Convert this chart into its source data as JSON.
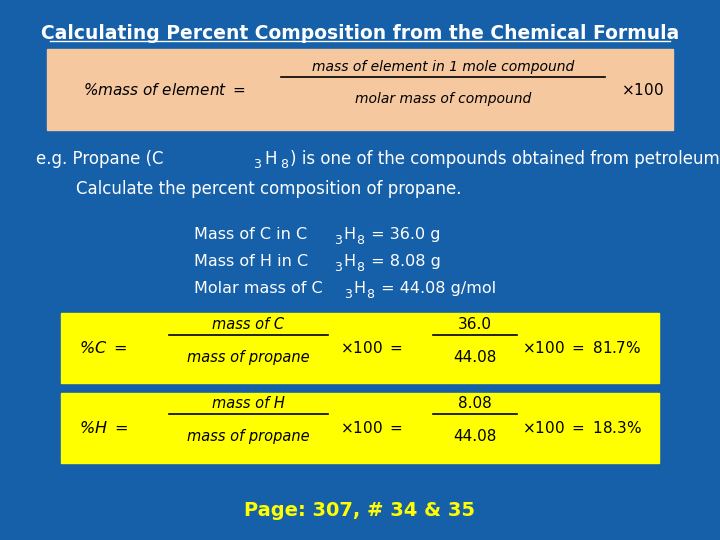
{
  "title": "Calculating Percent Composition from the Chemical Formula",
  "title_color": "#FFFFFF",
  "bg_color": "#1560A8",
  "formula_box_color": "#F5C8A0",
  "yellow_box_color": "#FFFF00",
  "perc_c_num": "mass of C",
  "perc_c_den": "mass of propane",
  "perc_c_num2": "36.0",
  "perc_c_den2": "44.08",
  "perc_c_end": "×100 = 81.7%",
  "perc_h_num": "mass of H",
  "perc_h_den": "mass of propane",
  "perc_h_num2": "8.08",
  "perc_h_den2": "44.08",
  "perc_h_end": "×100 = 18.3%",
  "page_text": "Page: 307, # 34 & 35",
  "page_color": "#FFFF00",
  "text_color": "#FFFFFF",
  "dark_text": "#000000"
}
